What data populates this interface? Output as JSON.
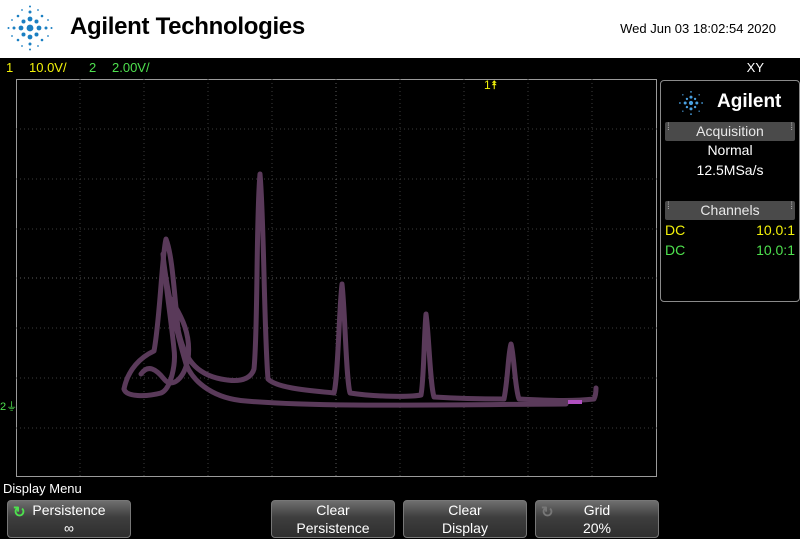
{
  "header": {
    "brand": "Agilent Technologies",
    "datetime": "Wed Jun 03 18:02:54 2020"
  },
  "channels": {
    "ch1_num": "1",
    "ch1_scale": "10.0V/",
    "ch2_num": "2",
    "ch2_scale": "2.00V/",
    "mode": "XY",
    "ch1_color": "#f2f20a",
    "ch2_color": "#4ee04e"
  },
  "markers": {
    "trigger": "1",
    "ch2_ground": "2"
  },
  "side_panel": {
    "brand": "Agilent",
    "acquisition_title": "Acquisition",
    "acquisition_mode": "Normal",
    "sample_rate": "12.5MSa/s",
    "channels_title": "Channels",
    "rows": [
      {
        "coupling": "DC",
        "probe": "10.0:1"
      },
      {
        "coupling": "DC",
        "probe": "10.0:1"
      }
    ]
  },
  "menu": {
    "title": "Display Menu",
    "persistence_label": "Persistence",
    "persistence_value": "∞",
    "clear_persistence_1": "Clear",
    "clear_persistence_2": "Persistence",
    "clear_display_1": "Clear",
    "clear_display_2": "Display",
    "grid_label": "Grid",
    "grid_value": "20%"
  },
  "trace_color": "#5a3a5a",
  "icons": {
    "logo": "agilent-spark-icon",
    "persistence": "rotate-arrow-icon",
    "grid": "rotate-arrow-icon"
  }
}
